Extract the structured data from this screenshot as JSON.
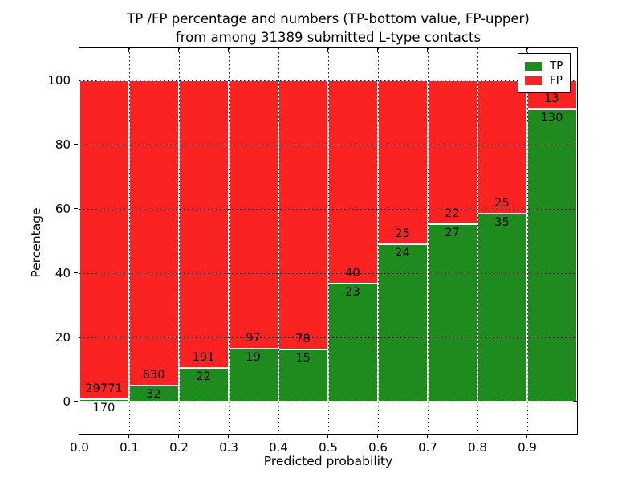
{
  "figure": {
    "title_line1": "TP /FP percentage and numbers (TP-bottom value, FP-upper)",
    "title_line2": "from among 31389 submitted L-type contacts"
  },
  "chart_data": {
    "type": "bar",
    "subtype": "stacked-percentage",
    "title": "TP /FP percentage and numbers (TP-bottom value, FP-upper) from among 31389 submitted L-type contacts",
    "xlabel": "Predicted probability",
    "ylabel": "Percentage",
    "total_submitted_contacts": 31389,
    "bin_edges": [
      0.0,
      0.1,
      0.2,
      0.3,
      0.4,
      0.5,
      0.6,
      0.7,
      0.8,
      0.9,
      1.0
    ],
    "xticklabels": [
      "0.0",
      "0.1",
      "0.2",
      "0.3",
      "0.4",
      "0.5",
      "0.6",
      "0.7",
      "0.8",
      "0.9"
    ],
    "yticks": [
      0,
      20,
      40,
      60,
      80,
      100
    ],
    "ylim": [
      -10,
      110
    ],
    "grid": true,
    "legend_position": "upper right",
    "series": [
      {
        "name": "TP",
        "color": "#1f8b1f",
        "counts": [
          170,
          32,
          22,
          19,
          15,
          23,
          24,
          27,
          35,
          130
        ]
      },
      {
        "name": "FP",
        "color": "#fb2222",
        "counts": [
          29771,
          630,
          191,
          97,
          78,
          40,
          25,
          22,
          25,
          13
        ]
      }
    ],
    "tp_percent_by_bin": [
      0.57,
      4.83,
      10.33,
      16.38,
      16.13,
      36.51,
      48.98,
      55.1,
      58.33,
      90.91
    ]
  }
}
